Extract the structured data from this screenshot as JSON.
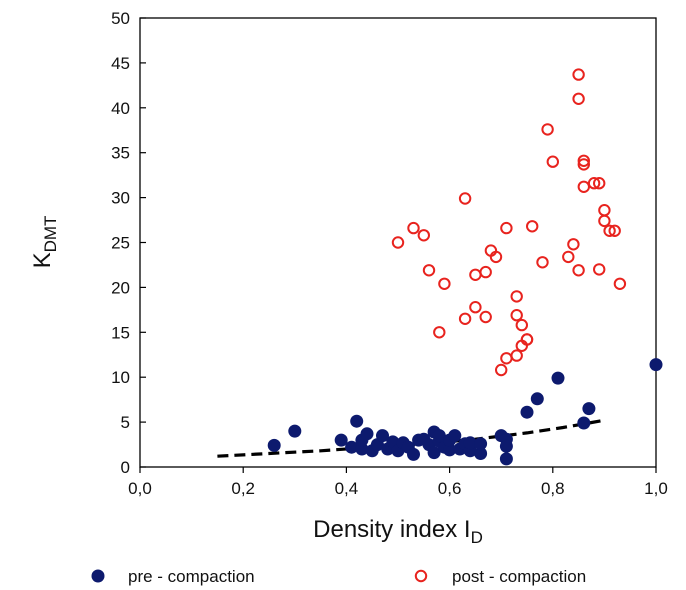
{
  "chart_data": {
    "type": "scatter",
    "xlabel": "Density index I",
    "xlabel_sub": "D",
    "ylabel": "K",
    "ylabel_sub": "DMT",
    "xlim": [
      0,
      1
    ],
    "ylim": [
      0,
      50
    ],
    "x_ticks": [
      "0,0",
      "0,2",
      "0,4",
      "0,6",
      "0,8",
      "1,0"
    ],
    "y_ticks": [
      "0",
      "5",
      "10",
      "15",
      "20",
      "25",
      "30",
      "35",
      "40",
      "45",
      "50"
    ],
    "legend_position": "bottom",
    "grid": false,
    "series": [
      {
        "name": "pre - compaction",
        "marker": "filled-circle",
        "color": "#0d1a6e",
        "points": [
          [
            0.26,
            2.4
          ],
          [
            0.3,
            4.0
          ],
          [
            0.39,
            3.0
          ],
          [
            0.41,
            2.2
          ],
          [
            0.42,
            5.1
          ],
          [
            0.43,
            2.0
          ],
          [
            0.43,
            3.0
          ],
          [
            0.44,
            3.7
          ],
          [
            0.45,
            1.8
          ],
          [
            0.46,
            2.5
          ],
          [
            0.47,
            3.5
          ],
          [
            0.48,
            2.0
          ],
          [
            0.49,
            2.8
          ],
          [
            0.5,
            1.8
          ],
          [
            0.51,
            2.7
          ],
          [
            0.52,
            2.2
          ],
          [
            0.53,
            1.4
          ],
          [
            0.54,
            3.0
          ],
          [
            0.55,
            3.1
          ],
          [
            0.56,
            2.5
          ],
          [
            0.57,
            3.9
          ],
          [
            0.57,
            1.6
          ],
          [
            0.58,
            2.9
          ],
          [
            0.58,
            3.5
          ],
          [
            0.59,
            2.2
          ],
          [
            0.6,
            1.9
          ],
          [
            0.6,
            3.0
          ],
          [
            0.61,
            3.5
          ],
          [
            0.62,
            2.0
          ],
          [
            0.63,
            2.6
          ],
          [
            0.64,
            1.8
          ],
          [
            0.64,
            2.7
          ],
          [
            0.66,
            1.5
          ],
          [
            0.66,
            2.6
          ],
          [
            0.7,
            3.5
          ],
          [
            0.71,
            3.1
          ],
          [
            0.71,
            0.9
          ],
          [
            0.71,
            2.3
          ],
          [
            0.75,
            6.1
          ],
          [
            0.77,
            7.6
          ],
          [
            0.81,
            9.9
          ],
          [
            0.86,
            4.9
          ],
          [
            0.87,
            6.5
          ],
          [
            1.0,
            11.4
          ]
        ]
      },
      {
        "name": "post - compaction",
        "marker": "open-circle",
        "color": "#e8231e",
        "points": [
          [
            0.5,
            25.0
          ],
          [
            0.53,
            26.6
          ],
          [
            0.55,
            25.8
          ],
          [
            0.56,
            21.9
          ],
          [
            0.58,
            15.0
          ],
          [
            0.59,
            20.4
          ],
          [
            0.63,
            29.9
          ],
          [
            0.63,
            16.5
          ],
          [
            0.65,
            21.4
          ],
          [
            0.65,
            17.8
          ],
          [
            0.67,
            21.7
          ],
          [
            0.67,
            16.7
          ],
          [
            0.68,
            24.1
          ],
          [
            0.69,
            23.4
          ],
          [
            0.7,
            10.8
          ],
          [
            0.71,
            12.1
          ],
          [
            0.71,
            26.6
          ],
          [
            0.73,
            12.4
          ],
          [
            0.73,
            19.0
          ],
          [
            0.73,
            16.9
          ],
          [
            0.74,
            13.5
          ],
          [
            0.74,
            15.8
          ],
          [
            0.75,
            14.2
          ],
          [
            0.75,
            14.2
          ],
          [
            0.76,
            26.8
          ],
          [
            0.78,
            22.8
          ],
          [
            0.79,
            37.6
          ],
          [
            0.8,
            34.0
          ],
          [
            0.83,
            23.4
          ],
          [
            0.84,
            24.8
          ],
          [
            0.85,
            21.9
          ],
          [
            0.85,
            43.7
          ],
          [
            0.85,
            41.0
          ],
          [
            0.86,
            33.7
          ],
          [
            0.86,
            34.1
          ],
          [
            0.86,
            31.2
          ],
          [
            0.88,
            31.6
          ],
          [
            0.89,
            31.6
          ],
          [
            0.89,
            22.0
          ],
          [
            0.9,
            28.6
          ],
          [
            0.9,
            27.4
          ],
          [
            0.91,
            26.3
          ],
          [
            0.92,
            26.3
          ],
          [
            0.93,
            20.4
          ]
        ]
      }
    ],
    "trendline": {
      "style": "dashed",
      "color": "#000000",
      "points": [
        [
          0.15,
          1.2
        ],
        [
          0.25,
          1.5
        ],
        [
          0.35,
          1.8
        ],
        [
          0.45,
          2.2
        ],
        [
          0.55,
          2.6
        ],
        [
          0.65,
          3.1
        ],
        [
          0.75,
          3.8
        ],
        [
          0.82,
          4.4
        ],
        [
          0.9,
          5.2
        ]
      ]
    }
  }
}
